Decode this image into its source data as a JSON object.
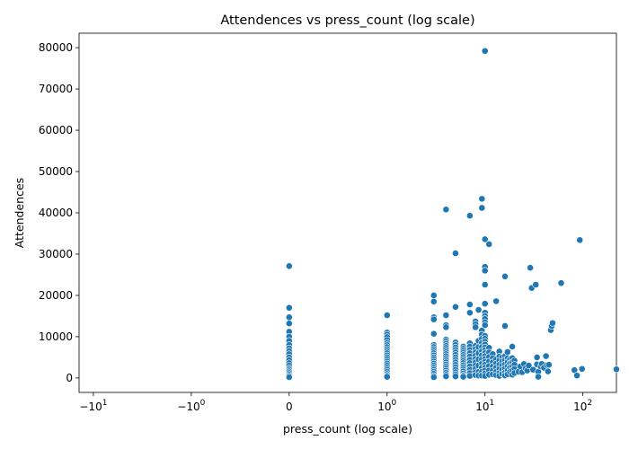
{
  "chart_data": {
    "type": "scatter",
    "title": "Attendences vs press_count (log scale)",
    "xlabel": "press_count (log scale)",
    "ylabel": "Attendences",
    "xscale": "symlog",
    "xlim": [
      -14,
      220
    ],
    "ylim": [
      -3500,
      83500
    ],
    "grid": false,
    "legend": "none",
    "colors": {
      "points": "#1f77b4"
    },
    "x_ticks": [
      {
        "base": "−10",
        "exp": "1",
        "value": -10
      },
      {
        "base": "−10",
        "exp": "0",
        "value": -1
      },
      {
        "base": "0",
        "exp": "",
        "value": 0
      },
      {
        "base": "10",
        "exp": "0",
        "value": 1
      },
      {
        "base": "10",
        "exp": "1",
        "value": 10
      },
      {
        "base": "10",
        "exp": "2",
        "value": 100
      }
    ],
    "y_ticks": [
      "0",
      "10000",
      "20000",
      "30000",
      "40000",
      "50000",
      "60000",
      "70000",
      "80000"
    ],
    "points": [
      [
        0,
        27100
      ],
      [
        0,
        17000
      ],
      [
        0,
        14700
      ],
      [
        0,
        13200
      ],
      [
        0,
        11200
      ],
      [
        0,
        10000
      ],
      [
        0,
        9000
      ],
      [
        0,
        8000
      ],
      [
        0,
        7200
      ],
      [
        0,
        6500
      ],
      [
        0,
        5800
      ],
      [
        0,
        5000
      ],
      [
        0,
        4300
      ],
      [
        0,
        3600
      ],
      [
        0,
        3000
      ],
      [
        0,
        2400
      ],
      [
        0,
        2000
      ],
      [
        0,
        1600
      ],
      [
        0,
        1200
      ],
      [
        0,
        800
      ],
      [
        0,
        500
      ],
      [
        0,
        200
      ],
      [
        1,
        15200
      ],
      [
        1,
        11000
      ],
      [
        1,
        10500
      ],
      [
        1,
        9900
      ],
      [
        1,
        9200
      ],
      [
        1,
        8500
      ],
      [
        1,
        8000
      ],
      [
        1,
        7500
      ],
      [
        1,
        7000
      ],
      [
        1,
        6500
      ],
      [
        1,
        6000
      ],
      [
        1,
        5500
      ],
      [
        1,
        5000
      ],
      [
        1,
        4500
      ],
      [
        1,
        4000
      ],
      [
        1,
        3500
      ],
      [
        1,
        3000
      ],
      [
        1,
        2500
      ],
      [
        1,
        2000
      ],
      [
        1,
        1500
      ],
      [
        1,
        1000
      ],
      [
        1,
        600
      ],
      [
        1,
        300
      ],
      [
        3,
        20000
      ],
      [
        3,
        18500
      ],
      [
        3,
        14700
      ],
      [
        3,
        14200
      ],
      [
        3,
        10700
      ],
      [
        3,
        8000
      ],
      [
        3,
        7500
      ],
      [
        3,
        7000
      ],
      [
        3,
        6500
      ],
      [
        3,
        6000
      ],
      [
        3,
        5500
      ],
      [
        3,
        5000
      ],
      [
        3,
        4500
      ],
      [
        3,
        4000
      ],
      [
        3,
        3500
      ],
      [
        3,
        3000
      ],
      [
        3,
        2500
      ],
      [
        3,
        2000
      ],
      [
        3,
        1500
      ],
      [
        3,
        1000
      ],
      [
        3,
        500
      ],
      [
        3,
        200
      ],
      [
        4,
        40800
      ],
      [
        4,
        15200
      ],
      [
        4,
        12800
      ],
      [
        4,
        12300
      ],
      [
        4,
        9300
      ],
      [
        4,
        8800
      ],
      [
        4,
        8300
      ],
      [
        4,
        7800
      ],
      [
        4,
        7300
      ],
      [
        4,
        6800
      ],
      [
        4,
        6300
      ],
      [
        4,
        5800
      ],
      [
        4,
        5300
      ],
      [
        4,
        4800
      ],
      [
        4,
        4300
      ],
      [
        4,
        3800
      ],
      [
        4,
        3300
      ],
      [
        4,
        2800
      ],
      [
        4,
        2300
      ],
      [
        4,
        1800
      ],
      [
        4,
        1300
      ],
      [
        4,
        800
      ],
      [
        4,
        400
      ],
      [
        5,
        30200
      ],
      [
        5,
        17200
      ],
      [
        5,
        8600
      ],
      [
        5,
        8000
      ],
      [
        5,
        7400
      ],
      [
        5,
        6800
      ],
      [
        5,
        6200
      ],
      [
        5,
        5600
      ],
      [
        5,
        5000
      ],
      [
        5,
        4400
      ],
      [
        5,
        3800
      ],
      [
        5,
        3200
      ],
      [
        5,
        2600
      ],
      [
        5,
        2000
      ],
      [
        5,
        1400
      ],
      [
        5,
        900
      ],
      [
        5,
        400
      ],
      [
        6,
        7600
      ],
      [
        6,
        7100
      ],
      [
        6,
        6600
      ],
      [
        6,
        6100
      ],
      [
        6,
        5600
      ],
      [
        6,
        5100
      ],
      [
        6,
        4600
      ],
      [
        6,
        4100
      ],
      [
        6,
        3600
      ],
      [
        6,
        3100
      ],
      [
        6,
        2600
      ],
      [
        6,
        2100
      ],
      [
        6,
        1600
      ],
      [
        6,
        1100
      ],
      [
        6,
        600
      ],
      [
        6,
        300
      ],
      [
        7,
        39300
      ],
      [
        7,
        17800
      ],
      [
        7,
        15800
      ],
      [
        7,
        8400
      ],
      [
        7,
        7600
      ],
      [
        7,
        6800
      ],
      [
        7,
        6000
      ],
      [
        7,
        5200
      ],
      [
        7,
        4400
      ],
      [
        7,
        3600
      ],
      [
        7,
        2800
      ],
      [
        7,
        2000
      ],
      [
        7,
        1200
      ],
      [
        7,
        500
      ],
      [
        8,
        13700
      ],
      [
        8,
        13000
      ],
      [
        8,
        12300
      ],
      [
        8,
        7800
      ],
      [
        8,
        7000
      ],
      [
        8,
        6200
      ],
      [
        8,
        5400
      ],
      [
        8,
        4600
      ],
      [
        8,
        3800
      ],
      [
        8,
        3000
      ],
      [
        8,
        2200
      ],
      [
        8,
        1400
      ],
      [
        8,
        700
      ],
      [
        8.6,
        16500
      ],
      [
        8.6,
        9000
      ],
      [
        8.6,
        7500
      ],
      [
        8.6,
        6000
      ],
      [
        8.6,
        4500
      ],
      [
        8.6,
        3000
      ],
      [
        8.6,
        1500
      ],
      [
        8.6,
        600
      ],
      [
        9.3,
        43400
      ],
      [
        9.3,
        41200
      ],
      [
        9.3,
        11500
      ],
      [
        9.3,
        10500
      ],
      [
        9.3,
        9500
      ],
      [
        9.3,
        8500
      ],
      [
        9.3,
        7500
      ],
      [
        9.3,
        6500
      ],
      [
        9.3,
        5500
      ],
      [
        9.3,
        4500
      ],
      [
        9.3,
        3500
      ],
      [
        9.3,
        2500
      ],
      [
        9.3,
        1500
      ],
      [
        9.3,
        600
      ],
      [
        10,
        79200
      ],
      [
        10,
        33600
      ],
      [
        10,
        26900
      ],
      [
        10,
        26000
      ],
      [
        10,
        22600
      ],
      [
        10,
        18000
      ],
      [
        10,
        15800
      ],
      [
        10,
        15000
      ],
      [
        10,
        14300
      ],
      [
        10,
        13500
      ],
      [
        10,
        12800
      ],
      [
        10,
        10200
      ],
      [
        10,
        9500
      ],
      [
        10,
        8800
      ],
      [
        10,
        8100
      ],
      [
        10,
        7400
      ],
      [
        10,
        6700
      ],
      [
        10,
        6000
      ],
      [
        10,
        5300
      ],
      [
        10,
        4600
      ],
      [
        10,
        3900
      ],
      [
        10,
        3200
      ],
      [
        10,
        2500
      ],
      [
        10,
        1800
      ],
      [
        10,
        1100
      ],
      [
        10,
        500
      ],
      [
        11,
        32400
      ],
      [
        11,
        7300
      ],
      [
        11,
        6200
      ],
      [
        11,
        5100
      ],
      [
        11,
        4000
      ],
      [
        11,
        2900
      ],
      [
        11,
        1800
      ],
      [
        11,
        800
      ],
      [
        12,
        5800
      ],
      [
        12,
        4800
      ],
      [
        12,
        3800
      ],
      [
        12,
        2800
      ],
      [
        12,
        1800
      ],
      [
        12,
        900
      ],
      [
        13,
        18600
      ],
      [
        13,
        4500
      ],
      [
        13,
        3500
      ],
      [
        13,
        2500
      ],
      [
        13,
        1500
      ],
      [
        13,
        700
      ],
      [
        14,
        6400
      ],
      [
        14,
        5200
      ],
      [
        14,
        4200
      ],
      [
        14,
        3200
      ],
      [
        14,
        2200
      ],
      [
        14,
        1200
      ],
      [
        14,
        500
      ],
      [
        15,
        5000
      ],
      [
        15,
        4000
      ],
      [
        15,
        3000
      ],
      [
        15,
        2000
      ],
      [
        15,
        1000
      ],
      [
        16,
        24600
      ],
      [
        16,
        12600
      ],
      [
        16,
        5300
      ],
      [
        16,
        4300
      ],
      [
        16,
        3300
      ],
      [
        16,
        2300
      ],
      [
        16,
        1300
      ],
      [
        16,
        600
      ],
      [
        17,
        6300
      ],
      [
        17,
        4800
      ],
      [
        17,
        3800
      ],
      [
        17,
        2800
      ],
      [
        17,
        1800
      ],
      [
        17,
        900
      ],
      [
        18,
        4500
      ],
      [
        18,
        3500
      ],
      [
        18,
        2500
      ],
      [
        18,
        1500
      ],
      [
        19,
        7600
      ],
      [
        19,
        4800
      ],
      [
        19,
        3800
      ],
      [
        19,
        2800
      ],
      [
        19,
        1800
      ],
      [
        19,
        800
      ],
      [
        20,
        4200
      ],
      [
        20,
        3200
      ],
      [
        20,
        2200
      ],
      [
        20,
        1200
      ],
      [
        22,
        1500
      ],
      [
        23,
        2800
      ],
      [
        24,
        1400
      ],
      [
        25,
        3400
      ],
      [
        26,
        2300
      ],
      [
        27,
        1800
      ],
      [
        28,
        3000
      ],
      [
        29,
        26700
      ],
      [
        30,
        21800
      ],
      [
        31,
        2000
      ],
      [
        33,
        22600
      ],
      [
        34,
        5000
      ],
      [
        34,
        3300
      ],
      [
        35,
        1500
      ],
      [
        35,
        300
      ],
      [
        37,
        2800
      ],
      [
        38,
        3400
      ],
      [
        40,
        2500
      ],
      [
        42,
        5300
      ],
      [
        43,
        3100
      ],
      [
        44,
        1600
      ],
      [
        45,
        3200
      ],
      [
        47,
        11600
      ],
      [
        48,
        12600
      ],
      [
        49,
        13300
      ],
      [
        60,
        23000
      ],
      [
        82,
        1900
      ],
      [
        87,
        600
      ],
      [
        93,
        33400
      ],
      [
        98,
        2200
      ],
      [
        220,
        2100
      ]
    ]
  }
}
